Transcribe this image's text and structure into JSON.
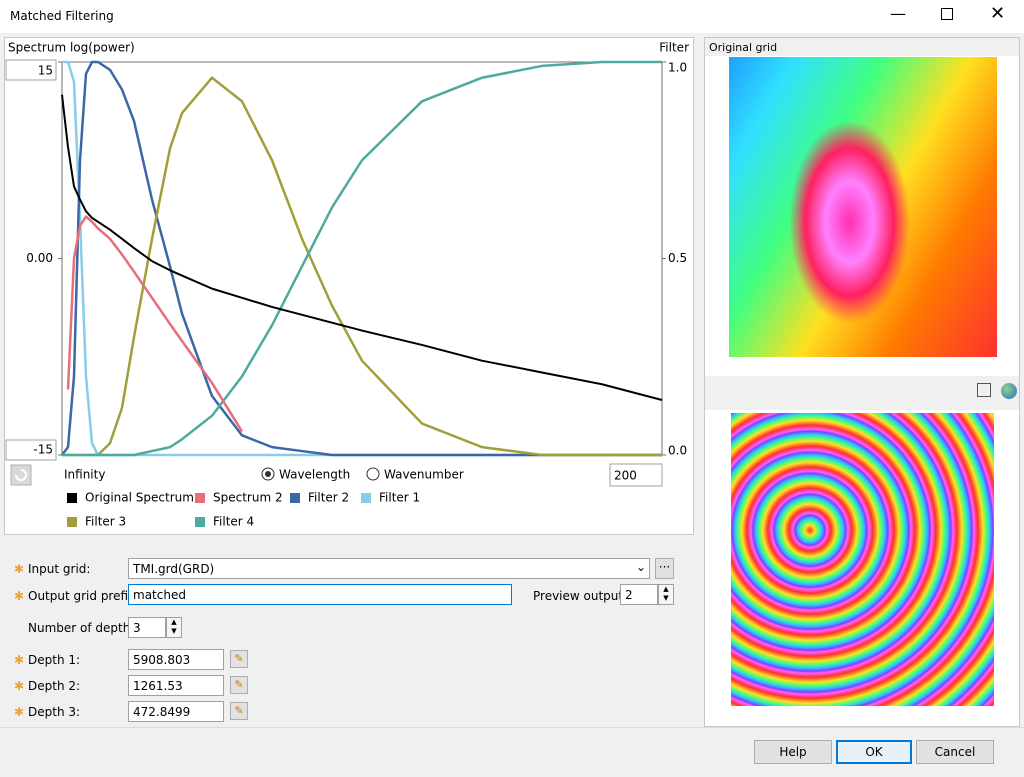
{
  "window": {
    "title": "Matched Filtering"
  },
  "chart_data": {
    "type": "line",
    "y_label": "Spectrum log(power)",
    "y2_label": "Filter",
    "x": [
      0,
      1,
      2,
      3,
      4,
      5,
      6,
      8,
      10,
      12,
      15,
      18,
      20,
      25,
      30,
      35,
      40,
      45,
      50,
      60,
      70,
      80,
      90,
      100
    ],
    "xlim": [
      0,
      100
    ],
    "ylim": [
      -15,
      15
    ],
    "yticks": [
      -15,
      {
        "value": 0,
        "label": "0.00"
      },
      15
    ],
    "y2lim": [
      0,
      1
    ],
    "y2ticks": [
      {
        "value": 0,
        "label": "0.0"
      },
      0.5,
      {
        "value": 1,
        "label": "1.0"
      }
    ],
    "legend": "bottom",
    "series": [
      {
        "name": "Original Spectrum",
        "color": "#000000",
        "values": [
          12.5,
          8.5,
          5.5,
          4.5,
          3.6,
          3.1,
          2.8,
          2.2,
          1.5,
          0.8,
          -0.2,
          -0.9,
          -1.3,
          -2.3,
          -3,
          -3.7,
          -4.3,
          -4.9,
          -5.5,
          -6.6,
          -7.8,
          -8.7,
          -9.6,
          -10.8
        ]
      },
      {
        "name": "Spectrum 2",
        "color": "#e66f7b",
        "values": [
          null,
          -10,
          0,
          2.5,
          3.2,
          2.8,
          2.3,
          1.5,
          0.3,
          -1,
          -3,
          -5,
          -6.3,
          -9.5,
          -13.2,
          null,
          null,
          null,
          null,
          null,
          null,
          null,
          null,
          null
        ]
      },
      {
        "name": "Filter 2",
        "color": "#3c67a5",
        "axis": "y2",
        "values": [
          0,
          0.02,
          0.2,
          0.75,
          0.97,
          1,
          1,
          0.98,
          0.93,
          0.85,
          0.65,
          0.48,
          0.36,
          0.15,
          0.05,
          0.02,
          0.01,
          0,
          0,
          0,
          0,
          0,
          0,
          0
        ]
      },
      {
        "name": "Filter 1",
        "color": "#87cdea",
        "axis": "y2",
        "values": [
          1,
          1,
          0.95,
          0.6,
          0.2,
          0.03,
          0,
          0,
          0,
          0,
          0,
          0,
          0,
          0,
          0,
          0,
          0,
          0,
          0,
          0,
          0,
          0,
          0,
          0
        ]
      },
      {
        "name": "Filter 3",
        "color": "#a29e3a",
        "axis": "y2",
        "values": [
          0,
          0,
          0,
          0,
          0,
          0,
          0,
          0.03,
          0.12,
          0.3,
          0.55,
          0.78,
          0.87,
          0.96,
          0.9,
          0.75,
          0.55,
          0.38,
          0.24,
          0.08,
          0.02,
          0,
          0,
          0
        ]
      },
      {
        "name": "Filter 4",
        "color": "#4bab9e",
        "axis": "y2",
        "values": [
          0,
          0,
          0,
          0,
          0,
          0,
          0,
          0,
          0,
          0,
          0.01,
          0.02,
          0.04,
          0.1,
          0.2,
          0.33,
          0.48,
          0.63,
          0.75,
          0.9,
          0.96,
          0.99,
          1,
          1
        ]
      }
    ]
  },
  "chart_controls": {
    "x_start_label": "Infinity",
    "x_mode_options": [
      "Wavelength",
      "Wavenumber"
    ],
    "x_mode_selected": 0,
    "x_end": "200"
  },
  "preview": {
    "title": "Original grid"
  },
  "form": {
    "input_grid": {
      "label": "Input grid:",
      "value": "TMI.grd(GRD)"
    },
    "output_prefix": {
      "label": "Output grid prefix:",
      "value": "matched"
    },
    "preview_output": {
      "label": "Preview output:",
      "value": "2"
    },
    "number_of_depths": {
      "label": "Number of depths:",
      "value": "3"
    },
    "depths": [
      {
        "label": "Depth 1:",
        "value": "5908.803"
      },
      {
        "label": "Depth 2:",
        "value": "1261.53"
      },
      {
        "label": "Depth 3:",
        "value": "472.8499"
      }
    ]
  },
  "buttons": [
    "Help",
    "OK",
    "Cancel"
  ]
}
